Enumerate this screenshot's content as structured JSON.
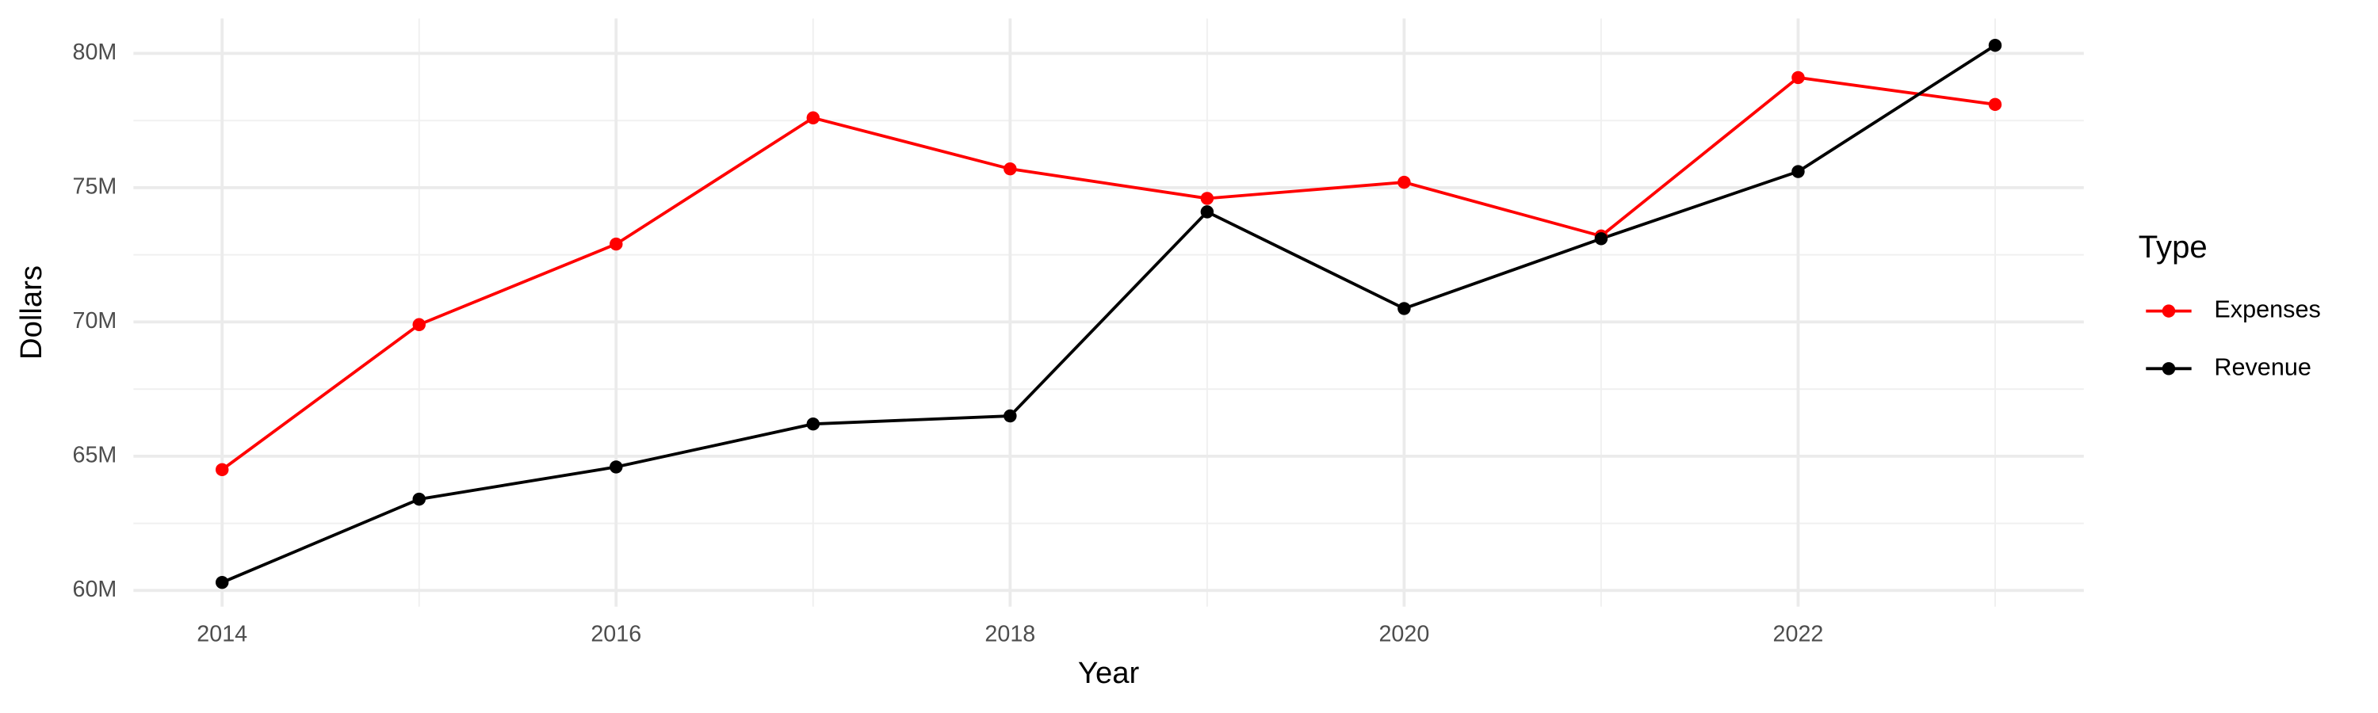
{
  "chart_data": {
    "type": "line",
    "x_label": "Year",
    "y_label": "Dollars",
    "legend_title": "Type",
    "x": [
      2014,
      2015,
      2016,
      2017,
      2018,
      2019,
      2020,
      2021,
      2022,
      2023
    ],
    "series": [
      {
        "name": "Expenses",
        "color": "#ff0000",
        "values": [
          64500000,
          69900000,
          72900000,
          77600000,
          75700000,
          74600000,
          75200000,
          73200000,
          79100000,
          78100000
        ]
      },
      {
        "name": "Revenue",
        "color": "#000000",
        "values": [
          60300000,
          63400000,
          64600000,
          66200000,
          66500000,
          74100000,
          70500000,
          73100000,
          75600000,
          80300000
        ]
      }
    ],
    "xlim": [
      2013.55,
      2023.45
    ],
    "xticks": [
      2014,
      2016,
      2018,
      2020,
      2022
    ],
    "ylim": [
      59400000,
      81300000
    ],
    "yticks": [
      {
        "value": 60000000,
        "label": "60M"
      },
      {
        "value": 65000000,
        "label": "65M"
      },
      {
        "value": 70000000,
        "label": "70M"
      },
      {
        "value": 75000000,
        "label": "75M"
      },
      {
        "value": 80000000,
        "label": "80M"
      }
    ],
    "grid": true,
    "legend": "right"
  }
}
